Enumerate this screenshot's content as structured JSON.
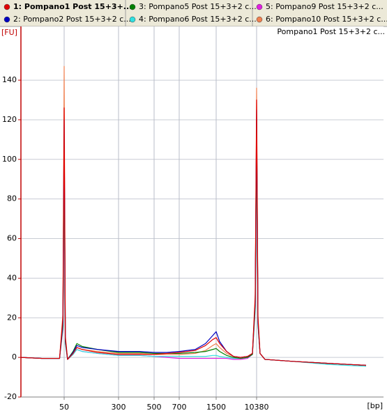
{
  "chart_data": {
    "type": "line",
    "subtitle": "Pompano1 Post 15+3+2 c...",
    "y_label": "[FU]",
    "x_label": "[bp]",
    "log_x": true,
    "grid": true,
    "legend": "top",
    "xlim": [
      12,
      4470000
    ],
    "xticks": [
      50,
      300,
      500,
      700,
      1500,
      10380
    ],
    "ylim": [
      -20,
      165
    ],
    "yticks": [
      -20,
      0,
      20,
      40,
      60,
      80,
      100,
      120,
      140
    ],
    "x": [
      12,
      24,
      43,
      48,
      50,
      52,
      56,
      67,
      76,
      91,
      151,
      300,
      405,
      500,
      594,
      700,
      974,
      1204,
      1395,
      1500,
      1772,
      2473,
      3451,
      4816,
      6723,
      8497,
      9707,
      10380,
      11085,
      12240,
      15480,
      58700,
      310000,
      1943000
    ],
    "series": [
      {
        "name": "1: Pompano1 Post 15+3+...",
        "color": "#e00000",
        "values": [
          0,
          -0.5,
          -0.5,
          20,
          126,
          10,
          -1,
          2,
          5,
          4,
          2.5,
          1.5,
          1.5,
          1.5,
          2,
          2.5,
          3.5,
          6,
          9,
          10,
          7,
          3,
          0.5,
          0,
          0.5,
          2,
          30,
          130,
          20,
          2,
          -1,
          -2,
          -3,
          -4
        ]
      },
      {
        "name": "2: Pompano2 Post 15+3+2 c...",
        "color": "#0000c0",
        "values": [
          0,
          -0.5,
          -0.5,
          18,
          120,
          9,
          -1,
          2.5,
          6,
          5,
          4,
          3,
          3,
          2.5,
          2.5,
          3,
          4,
          7,
          11,
          13,
          8,
          3,
          0.5,
          0,
          0.5,
          2,
          28,
          125,
          18,
          2,
          -1,
          -2,
          -3,
          -4
        ]
      },
      {
        "name": "3: Pompano5 Post 15+3+2 c...",
        "color": "#008000",
        "values": [
          0,
          -0.5,
          -0.5,
          16,
          110,
          8,
          -1,
          3,
          7,
          5.5,
          4,
          2.5,
          2.5,
          2,
          2,
          2,
          2.5,
          3,
          4,
          4.5,
          3,
          1,
          0,
          -0.5,
          0,
          1.5,
          26,
          120,
          17,
          2,
          -1,
          -2,
          -3,
          -4
        ]
      },
      {
        "name": "4: Pompano6 Post 15+3+2 c...",
        "color": "#30e0e0",
        "values": [
          0,
          -0.5,
          -0.5,
          15,
          100,
          7,
          -1,
          1.5,
          4,
          3,
          2,
          1,
          1,
          0.5,
          0.5,
          0.5,
          0.5,
          0.5,
          1,
          1,
          0.5,
          0,
          -0.5,
          -0.5,
          0,
          1.5,
          24,
          110,
          16,
          2,
          -1,
          -2,
          -3.5,
          -4.5
        ]
      },
      {
        "name": "5: Pompano9 Post 15+3+2 c...",
        "color": "#e020e0",
        "values": [
          0,
          -0.5,
          -0.5,
          14,
          97,
          7,
          -1,
          1.5,
          4,
          3,
          2,
          1,
          1,
          0.5,
          0,
          -0.5,
          -0.5,
          -0.5,
          -0.5,
          -0.5,
          -0.5,
          -0.5,
          -1,
          -1,
          -0.5,
          1.5,
          25,
          118,
          17,
          2,
          -1,
          -2,
          -3,
          -4
        ]
      },
      {
        "name": "6: Pompano10 Post 15+3+2 c...",
        "color": "#f08050",
        "values": [
          0,
          -0.5,
          -0.5,
          22,
          147,
          11,
          -1,
          2,
          5,
          4,
          3,
          2,
          2,
          1.5,
          1.5,
          1.5,
          2,
          3.5,
          6,
          7,
          5,
          2,
          0.5,
          0,
          0.5,
          2,
          32,
          136,
          21,
          2,
          -1,
          -2,
          -3,
          -4
        ]
      }
    ]
  }
}
